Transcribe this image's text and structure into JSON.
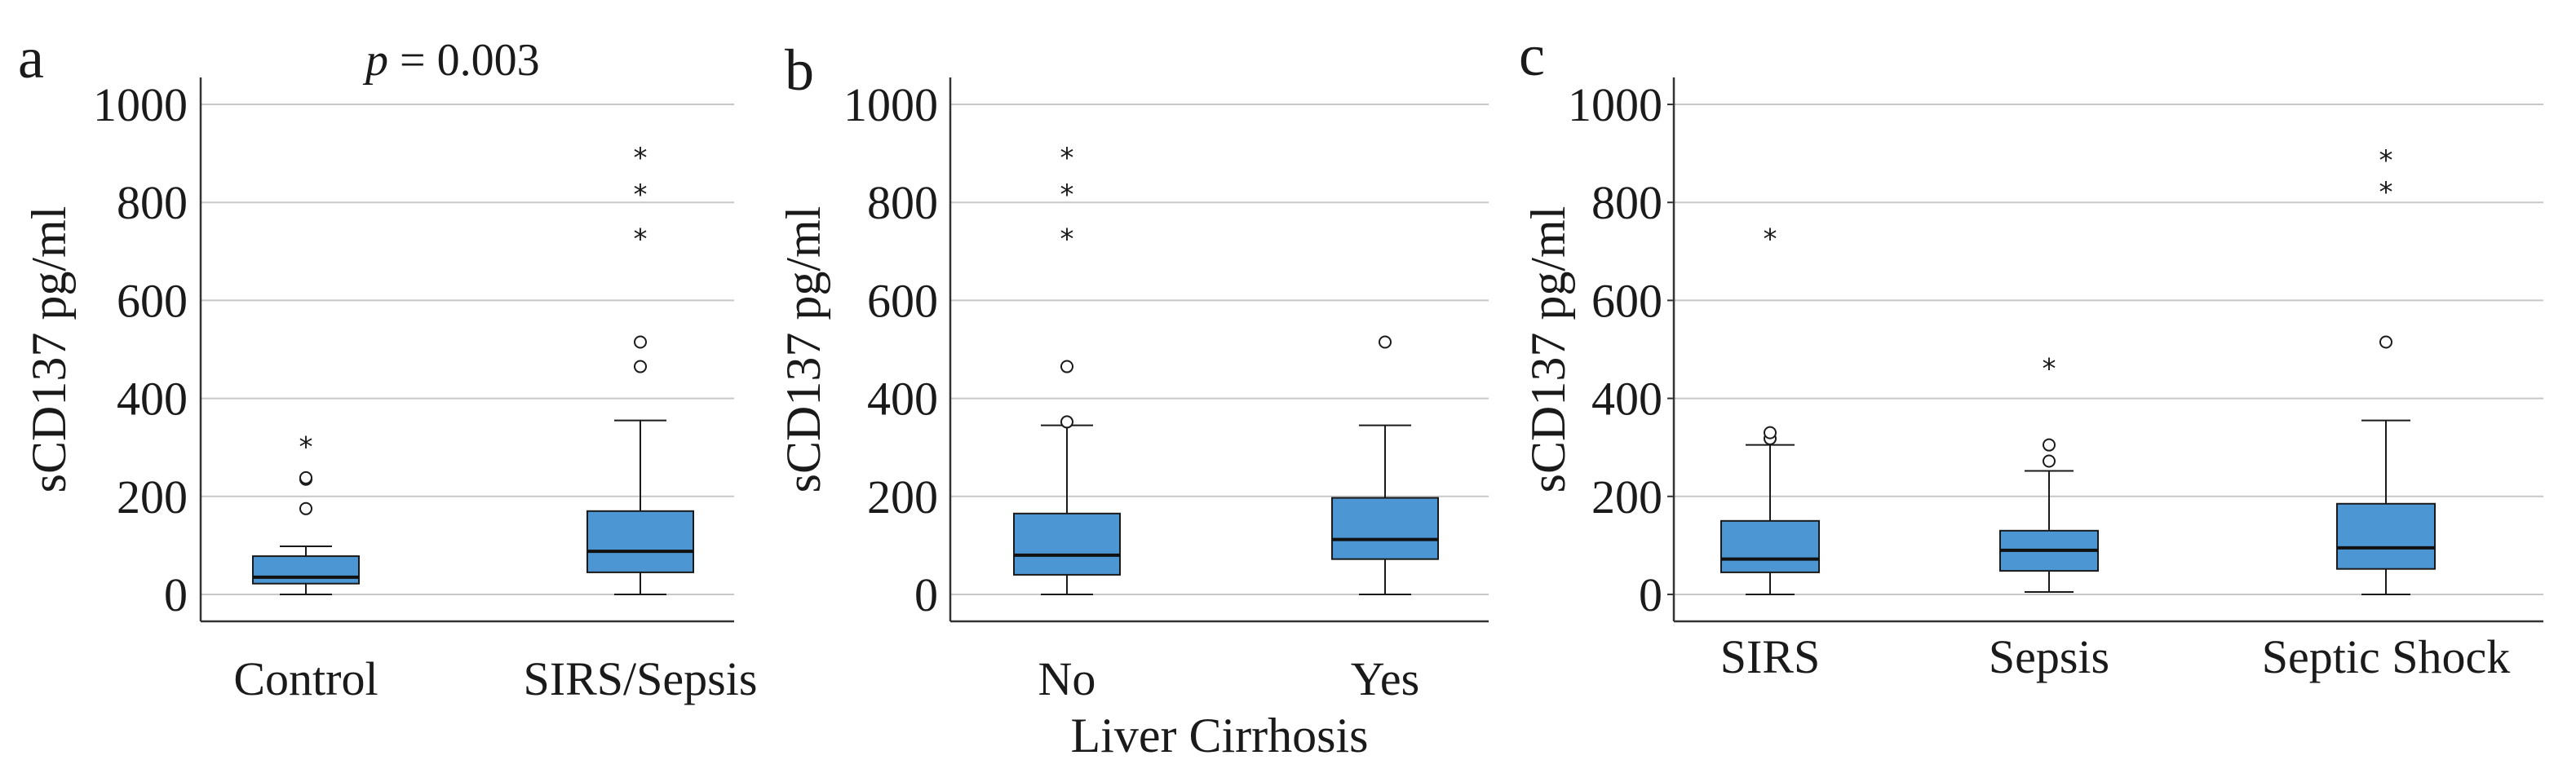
{
  "chart_data": [
    {
      "type": "box",
      "panel_letter": "a",
      "annotation": {
        "italic": "p",
        "rest": " = 0.003"
      },
      "ylabel": "sCD137 pg/ml",
      "xlabel": "",
      "ylim": [
        -55,
        1055
      ],
      "yticks": [
        0,
        200,
        400,
        600,
        800,
        1000
      ],
      "grid": true,
      "categories": [
        "Control",
        "SIRS/Sepsis"
      ],
      "boxes": [
        {
          "category": "Control",
          "whisker_low": 0,
          "q1": 22,
          "median": 35,
          "q3": 78,
          "whisker_high": 98,
          "outliers": [
            175,
            235,
            238
          ],
          "extremes": [
            305
          ]
        },
        {
          "category": "SIRS/Sepsis",
          "whisker_low": 0,
          "q1": 45,
          "median": 88,
          "q3": 170,
          "whisker_high": 355,
          "outliers": [
            465,
            515
          ],
          "extremes": [
            730,
            820,
            895
          ]
        }
      ],
      "colors": {
        "box": "#4c97d3",
        "grid": "#c8c8c8",
        "axis": "#333333"
      }
    },
    {
      "type": "box",
      "panel_letter": "b",
      "ylabel": "sCD137 pg/ml",
      "xlabel": "Liver Cirrhosis",
      "ylim": [
        -55,
        1055
      ],
      "yticks": [
        0,
        200,
        400,
        600,
        800,
        1000
      ],
      "grid": true,
      "categories": [
        "No",
        "Yes"
      ],
      "boxes": [
        {
          "category": "No",
          "whisker_low": 0,
          "q1": 40,
          "median": 80,
          "q3": 165,
          "whisker_high": 345,
          "outliers": [
            352,
            465
          ],
          "extremes": [
            730,
            820,
            895
          ]
        },
        {
          "category": "Yes",
          "whisker_low": 0,
          "q1": 72,
          "median": 112,
          "q3": 197,
          "whisker_high": 345,
          "outliers": [
            515
          ],
          "extremes": []
        }
      ],
      "colors": {
        "box": "#4c97d3",
        "grid": "#c8c8c8",
        "axis": "#333333"
      }
    },
    {
      "type": "box",
      "panel_letter": "c",
      "ylabel": "sCD137 pg/ml",
      "xlabel": "",
      "ylim": [
        -55,
        1055
      ],
      "yticks": [
        0,
        200,
        400,
        600,
        800,
        1000
      ],
      "grid": true,
      "categories": [
        "SIRS",
        "Sepsis",
        "Septic Shock"
      ],
      "boxes": [
        {
          "category": "SIRS",
          "whisker_low": 0,
          "q1": 45,
          "median": 72,
          "q3": 150,
          "whisker_high": 305,
          "outliers": [
            318,
            330
          ],
          "extremes": [
            730
          ]
        },
        {
          "category": "Sepsis",
          "whisker_low": 5,
          "q1": 48,
          "median": 90,
          "q3": 130,
          "whisker_high": 252,
          "outliers": [
            272,
            305
          ],
          "extremes": [
            465
          ]
        },
        {
          "category": "Septic Shock",
          "whisker_low": 0,
          "q1": 52,
          "median": 95,
          "q3": 185,
          "whisker_high": 355,
          "outliers": [
            515
          ],
          "extremes": [
            825,
            890
          ]
        }
      ],
      "colors": {
        "box": "#4c97d3",
        "grid": "#c8c8c8",
        "axis": "#333333"
      }
    }
  ]
}
